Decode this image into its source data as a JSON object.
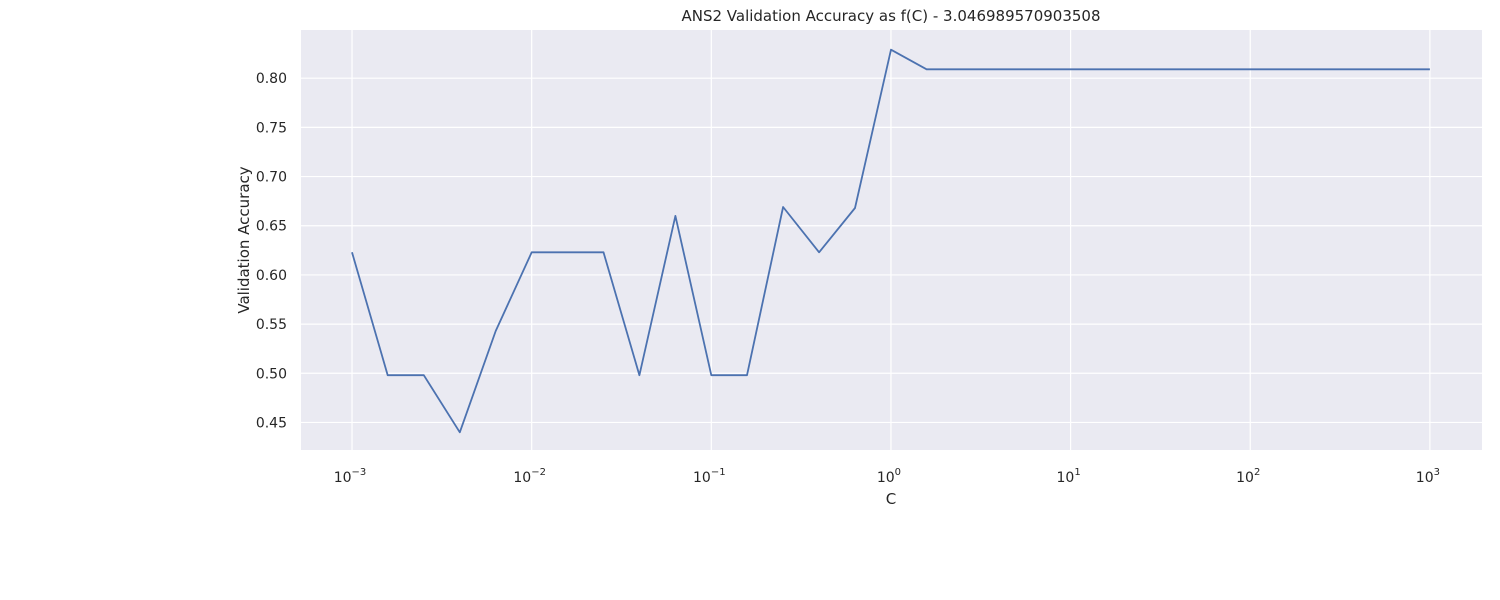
{
  "chart_data": {
    "type": "line",
    "title": "ANS2 Validation Accuracy as f(C) - 3.046989570903508",
    "xlabel": "C",
    "ylabel": "Validation Accuracy",
    "xscale": "log",
    "xlim": [
      0.00052,
      1950
    ],
    "ylim": [
      0.422,
      0.849
    ],
    "grid": true,
    "x_ticks": [
      {
        "value": 0.001,
        "base": "10",
        "exp": "−3"
      },
      {
        "value": 0.01,
        "base": "10",
        "exp": "−2"
      },
      {
        "value": 0.1,
        "base": "10",
        "exp": "−1"
      },
      {
        "value": 1,
        "base": "10",
        "exp": "0"
      },
      {
        "value": 10,
        "base": "10",
        "exp": "1"
      },
      {
        "value": 100,
        "base": "10",
        "exp": "2"
      },
      {
        "value": 1000,
        "base": "10",
        "exp": "3"
      }
    ],
    "y_ticks": [
      {
        "value": 0.45,
        "label": "0.45"
      },
      {
        "value": 0.5,
        "label": "0.50"
      },
      {
        "value": 0.55,
        "label": "0.55"
      },
      {
        "value": 0.6,
        "label": "0.60"
      },
      {
        "value": 0.65,
        "label": "0.65"
      },
      {
        "value": 0.7,
        "label": "0.70"
      },
      {
        "value": 0.75,
        "label": "0.75"
      },
      {
        "value": 0.8,
        "label": "0.80"
      }
    ],
    "colors": {
      "line": "#4c72b0",
      "plot_bg": "#eaeaf2",
      "grid": "#ffffff"
    },
    "series": [
      {
        "x": [
          0.001,
          0.00158,
          0.00251,
          0.00398,
          0.00631,
          0.01,
          0.0158,
          0.0251,
          0.0398,
          0.0631,
          0.1,
          0.158,
          0.251,
          0.398,
          0.631,
          1,
          1.58,
          2.51,
          3.98,
          6.31,
          10,
          15.8,
          25.1,
          39.8,
          63.1,
          100,
          158,
          251,
          398,
          631,
          1000
        ],
        "values": [
          0.623,
          0.498,
          0.498,
          0.44,
          0.543,
          0.623,
          0.623,
          0.623,
          0.498,
          0.66,
          0.498,
          0.498,
          0.669,
          0.623,
          0.668,
          0.829,
          0.809,
          0.809,
          0.809,
          0.809,
          0.809,
          0.809,
          0.809,
          0.809,
          0.809,
          0.809,
          0.809,
          0.809,
          0.809,
          0.809,
          0.809
        ]
      }
    ]
  }
}
